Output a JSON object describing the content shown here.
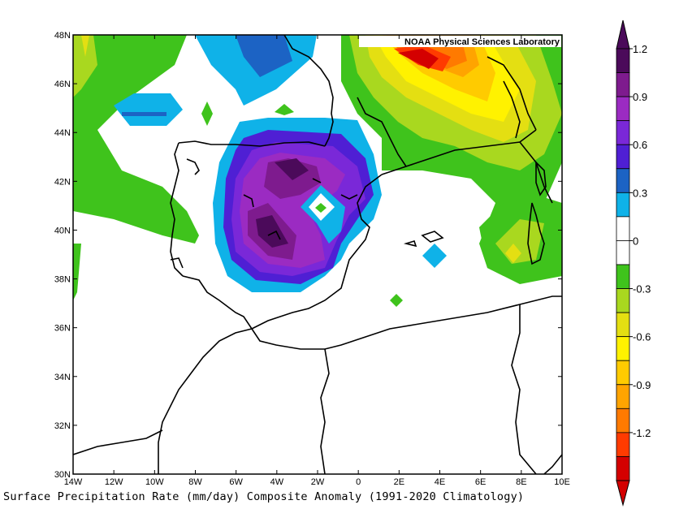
{
  "map": {
    "credit": "NOAA Physical Sciences Laboratory",
    "caption": "Surface Precipitation Rate (mm/day) Composite Anomaly (1991-2020 Climatology)",
    "lon_ticks": [
      "14W",
      "12W",
      "10W",
      "8W",
      "6W",
      "4W",
      "2W",
      "0",
      "2E",
      "4E",
      "6E",
      "8E",
      "10E"
    ],
    "lat_ticks": [
      "48N",
      "46N",
      "44N",
      "42N",
      "40N",
      "38N",
      "36N",
      "34N",
      "32N",
      "30N"
    ]
  },
  "colorbar": {
    "labels": [
      "1.2",
      "0.9",
      "0.6",
      "0.3",
      "0",
      "-0.3",
      "-0.6",
      "-0.9",
      "-1.2"
    ],
    "colors": [
      "#4b0a5a",
      "#7e1b8e",
      "#9b2bc2",
      "#7a28d8",
      "#4f1fd4",
      "#1c63c4",
      "#0fb2e8",
      "#ffffff",
      "#ffffff",
      "#3fc31c",
      "#a9d81f",
      "#e4df12",
      "#fff200",
      "#ffcb00",
      "#ffa400",
      "#ff7a00",
      "#ff3b00",
      "#d40000"
    ]
  }
}
